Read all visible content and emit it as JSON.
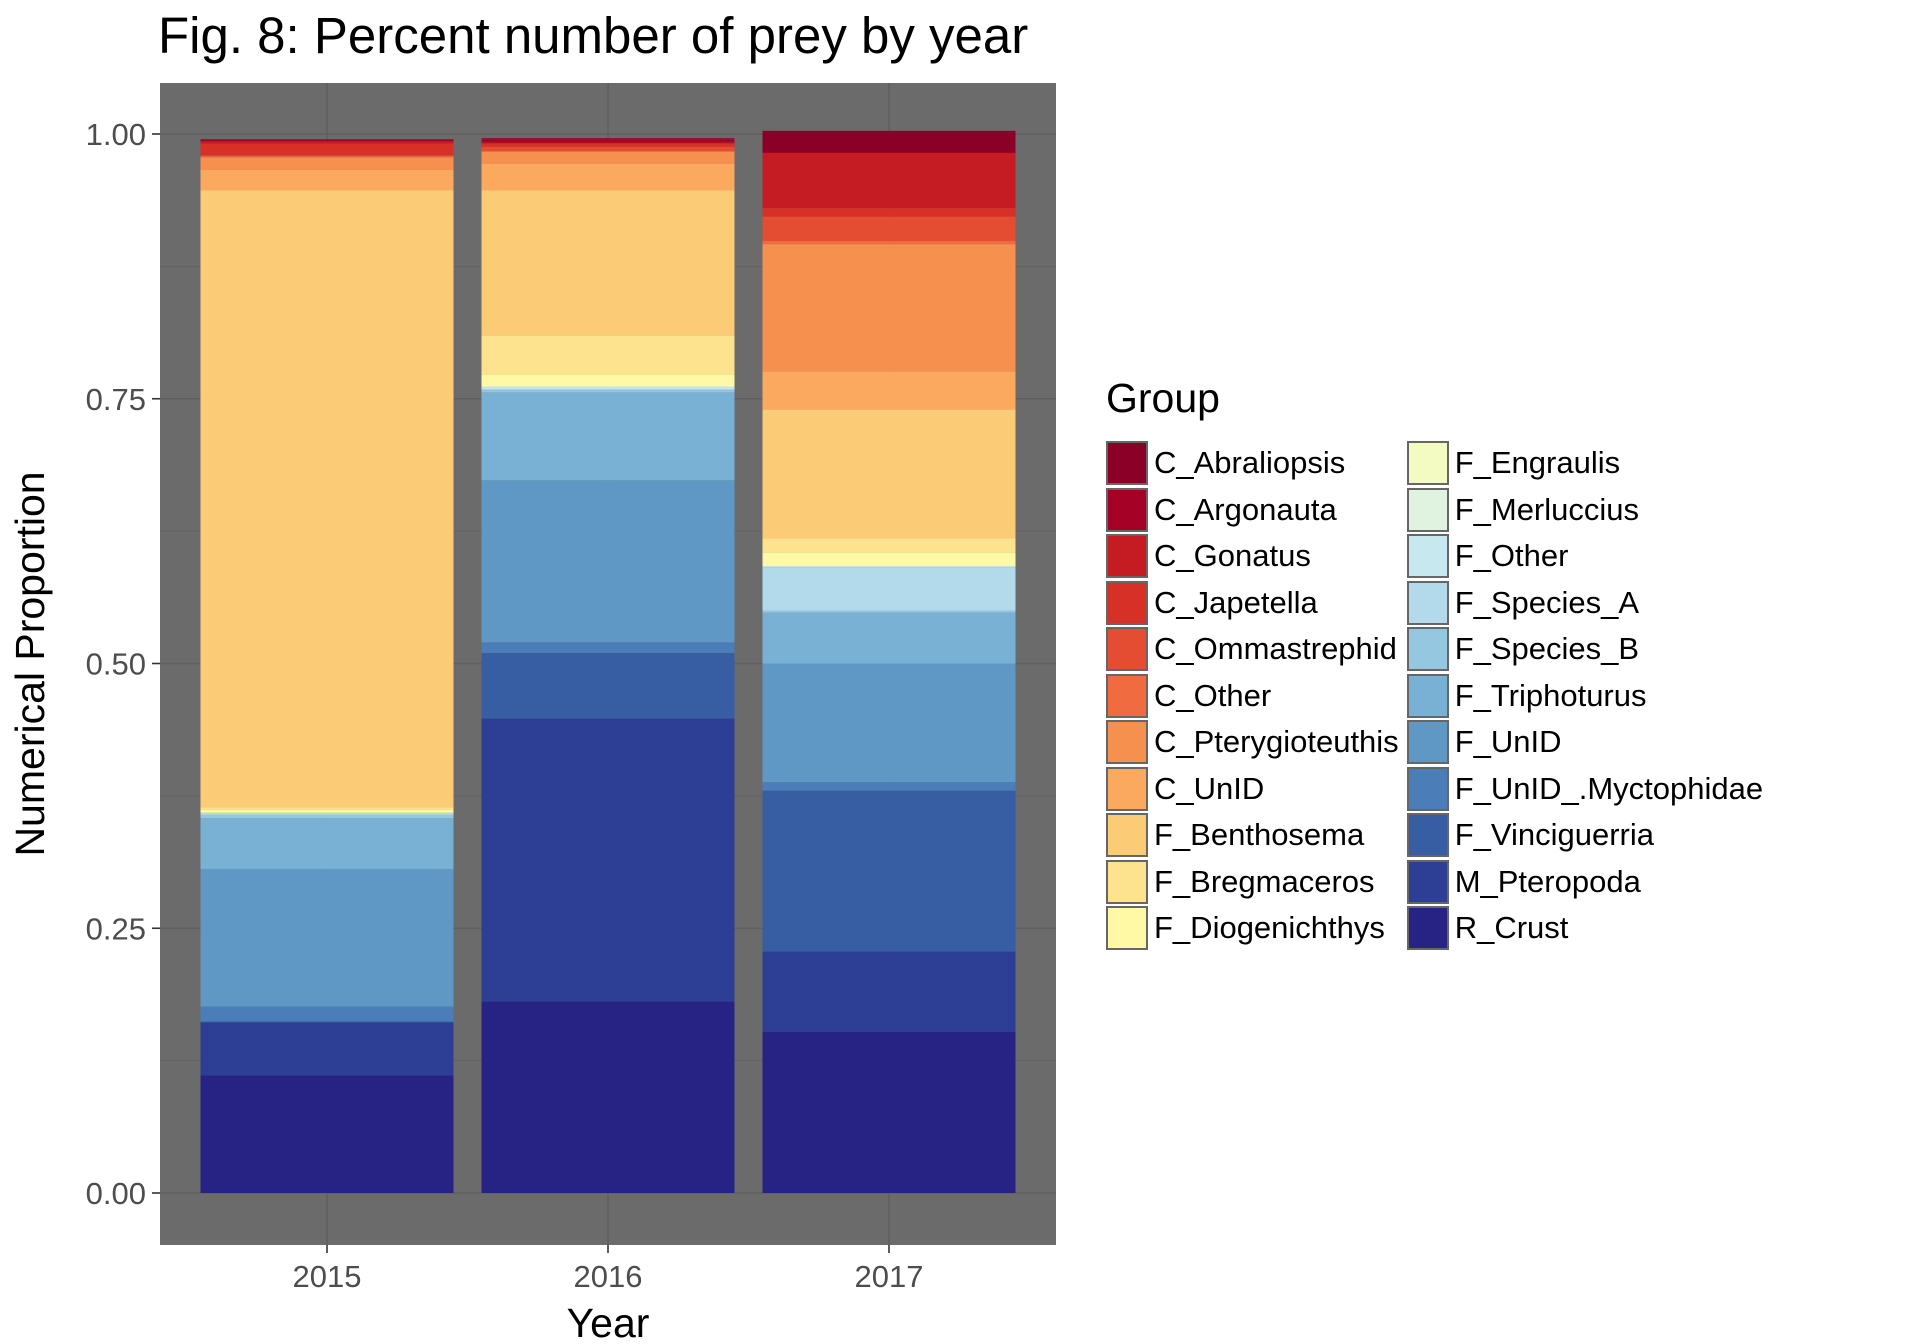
{
  "chart_data": {
    "type": "bar",
    "stacked": true,
    "title": "Fig. 8: Percent number of prey by year",
    "xlabel": "Year",
    "ylabel": "Numerical Proportion",
    "ylim": [
      0,
      1
    ],
    "y_ticks": [
      "0.00",
      "0.25",
      "0.50",
      "0.75",
      "1.00"
    ],
    "grid": true,
    "panel_background": "#6b6b6b",
    "grid_color": "#5f5f5f",
    "categories": [
      "2015",
      "2016",
      "2017"
    ],
    "legend": {
      "title": "Group",
      "placement": "right"
    },
    "series": [
      {
        "name": "C_Abraliopsis",
        "color": "#8b0026",
        "values": [
          0.001,
          0.001,
          0.02
        ]
      },
      {
        "name": "C_Argonauta",
        "color": "#a50026",
        "values": [
          0.001,
          0.003,
          0.001
        ]
      },
      {
        "name": "C_Gonatus",
        "color": "#c51b23",
        "values": [
          0.002,
          0.001,
          0.052
        ]
      },
      {
        "name": "C_Japetella",
        "color": "#d73027",
        "values": [
          0.011,
          0.003,
          0.008
        ]
      },
      {
        "name": "C_Ommastrephid",
        "color": "#e54d32",
        "values": [
          0.001,
          0.004,
          0.023
        ]
      },
      {
        "name": "C_Other",
        "color": "#f06b40",
        "values": [
          0.001,
          0.001,
          0.003
        ]
      },
      {
        "name": "C_Pterygioteuthis",
        "color": "#f6904e",
        "values": [
          0.012,
          0.011,
          0.12
        ]
      },
      {
        "name": "C_UnID",
        "color": "#fba95f",
        "values": [
          0.019,
          0.025,
          0.036
        ]
      },
      {
        "name": "F_Benthosema",
        "color": "#fbcb76",
        "values": [
          0.583,
          0.137,
          0.122
        ]
      },
      {
        "name": "F_Bregmaceros",
        "color": "#fde38d",
        "values": [
          0.002,
          0.037,
          0.013
        ]
      },
      {
        "name": "F_Diogenichthys",
        "color": "#fff8a5",
        "values": [
          0.003,
          0.011,
          0.012
        ]
      },
      {
        "name": "F_Engraulis",
        "color": "#f3fbc2",
        "values": [
          0,
          0,
          0.001
        ]
      },
      {
        "name": "F_Merluccius",
        "color": "#e0f3e0",
        "values": [
          0,
          0.001,
          0
        ]
      },
      {
        "name": "F_Other",
        "color": "#c8e8f0",
        "values": [
          0,
          0.002,
          0.001
        ]
      },
      {
        "name": "F_Species_A",
        "color": "#b2daea",
        "values": [
          0.002,
          0.001,
          0.041
        ]
      },
      {
        "name": "F_Species_B",
        "color": "#95c7e0",
        "values": [
          0.003,
          0.002,
          0.002
        ]
      },
      {
        "name": "F_Triphoturus",
        "color": "#79b1d4",
        "values": [
          0.048,
          0.083,
          0.048
        ]
      },
      {
        "name": "F_UnID",
        "color": "#5f97c5",
        "values": [
          0.13,
          0.153,
          0.112
        ]
      },
      {
        "name": "F_UnID_.Myctophidae",
        "color": "#4b7eb9",
        "values": [
          0.014,
          0.01,
          0.008
        ]
      },
      {
        "name": "F_Vinciguerria",
        "color": "#375ea3",
        "values": [
          0.001,
          0.062,
          0.152
        ]
      },
      {
        "name": "M_Pteropoda",
        "color": "#2c3f94",
        "values": [
          0.05,
          0.267,
          0.076
        ]
      },
      {
        "name": "R_Crust",
        "color": "#262384",
        "values": [
          0.111,
          0.181,
          0.152
        ]
      }
    ]
  }
}
